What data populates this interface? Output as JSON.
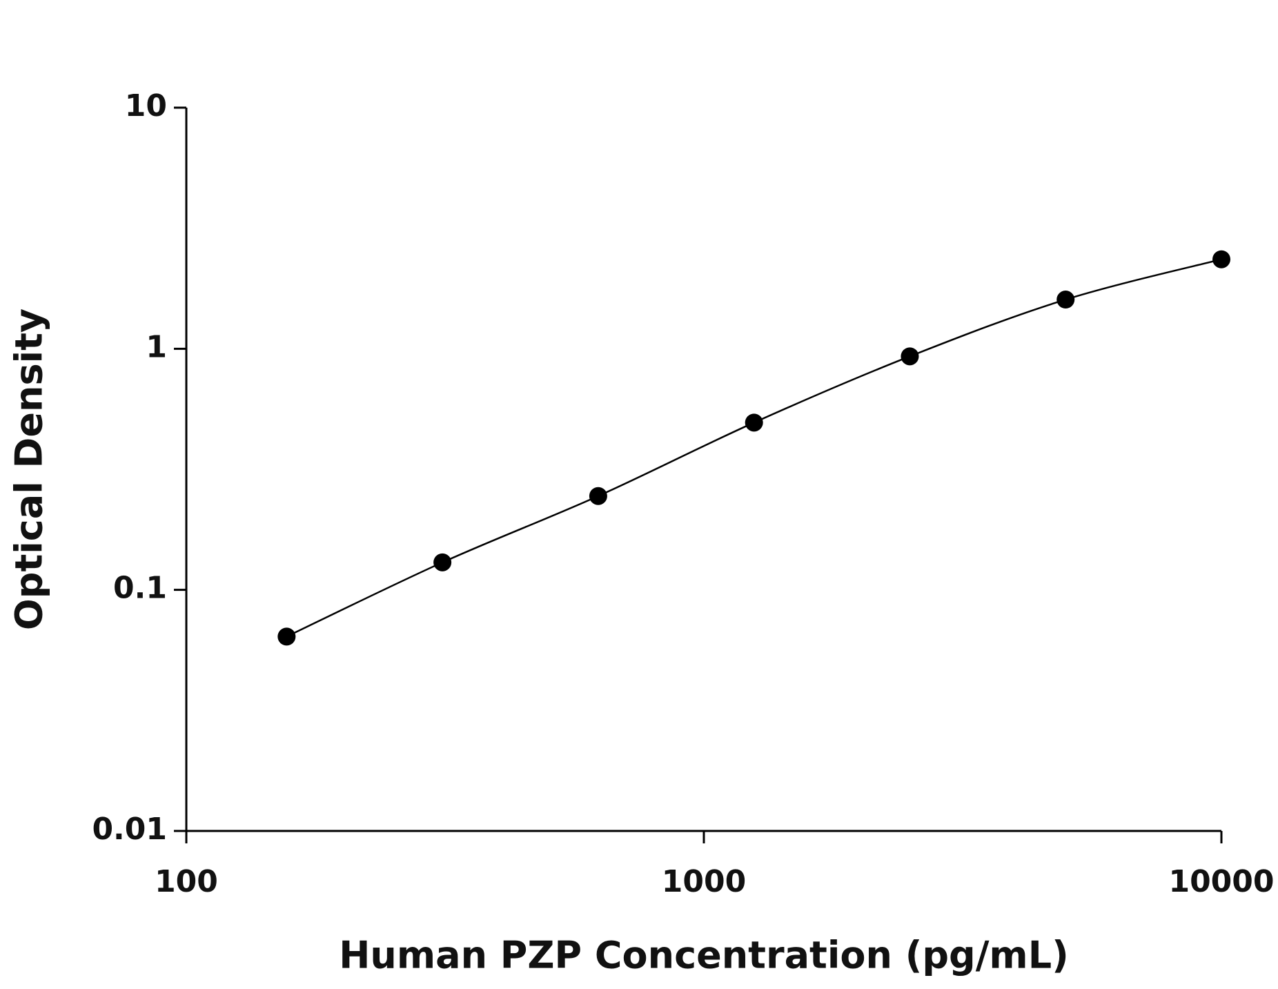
{
  "chart_data": {
    "type": "scatter",
    "x_label": "Human PZP Concentration (pg/mL)",
    "y_label": "Optical Density",
    "x": [
      156.25,
      312.5,
      625,
      1250,
      2500,
      5000,
      10000
    ],
    "series": [
      {
        "color": "#000000",
        "values": [
          0.064,
          0.13,
          0.245,
          0.494,
          0.93,
          1.6,
          2.35
        ]
      }
    ],
    "xlim": [
      100,
      10000
    ],
    "xticks": [
      100,
      1000,
      10000
    ],
    "ylim": [
      0.01,
      10
    ],
    "yticks": [
      0.01,
      0.1,
      1,
      10
    ],
    "xscale": "log",
    "yscale": "log",
    "fit_line": true
  }
}
